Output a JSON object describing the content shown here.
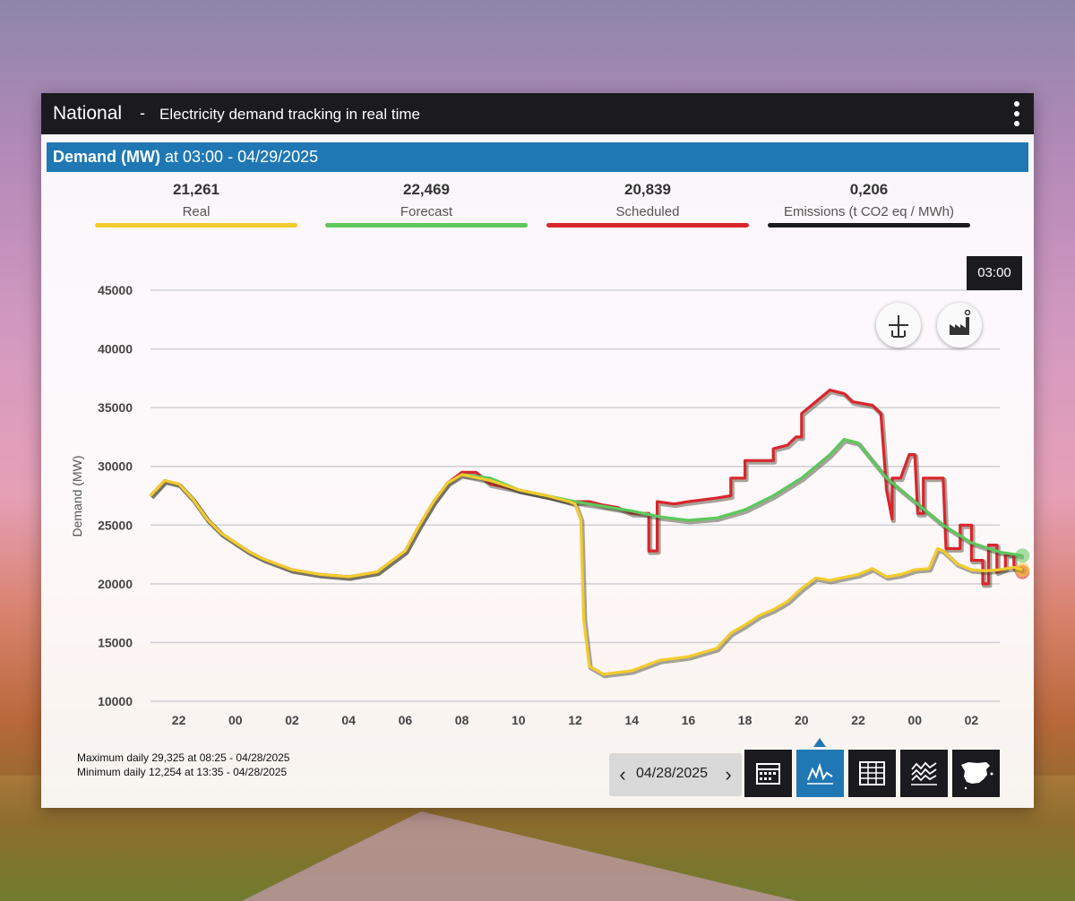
{
  "header": {
    "region": "National",
    "separator": "-",
    "subtitle": "Electricity demand tracking in real time"
  },
  "demand_bar": {
    "label": "Demand (MW)",
    "at_text": "at 03:00 - 04/29/2025"
  },
  "stats": [
    {
      "value": "21,261",
      "label": "Real",
      "color": "#f2cc2e"
    },
    {
      "value": "22,469",
      "label": "Forecast",
      "color": "#5cc85c"
    },
    {
      "value": "20,839",
      "label": "Scheduled",
      "color": "#d9262c"
    },
    {
      "value": "0,206",
      "label": "Emissions (t CO2 eq / MWh)",
      "color": "#1b1b1f"
    }
  ],
  "tooltip": "03:00",
  "icons": {
    "wind": "wind-turbine-icon",
    "factory": "factory-icon",
    "calendar": "calendar-icon",
    "line": "line-chart-icon",
    "table": "table-icon",
    "stacked": "stacked-chart-icon",
    "map": "spain-map-icon"
  },
  "footer": {
    "max_text": "Maximum daily 29,325 at 08:25 - 04/28/2025",
    "min_text": "Minimum daily 12,254 at 13:35 - 04/28/2025",
    "date": "04/28/2025"
  },
  "chart_data": {
    "type": "line",
    "ylabel": "Demand (MW)",
    "ylim": [
      10000,
      45000
    ],
    "yticks": [
      "45000",
      "40000",
      "35000",
      "30000",
      "25000",
      "20000",
      "15000",
      "10000"
    ],
    "xticks": [
      "22",
      "00",
      "02",
      "04",
      "06",
      "08",
      "10",
      "12",
      "14",
      "16",
      "18",
      "20",
      "22",
      "00",
      "02"
    ],
    "x_hours_range": [
      21,
      51
    ],
    "grid": true,
    "series": [
      {
        "name": "Scheduled",
        "color": "#d9262c",
        "points": [
          [
            21,
            27500
          ],
          [
            21.5,
            28800
          ],
          [
            22,
            28500
          ],
          [
            22.5,
            27200
          ],
          [
            23,
            25500
          ],
          [
            23.5,
            24300
          ],
          [
            24,
            23500
          ],
          [
            24.5,
            22700
          ],
          [
            25,
            22100
          ],
          [
            26,
            21200
          ],
          [
            27,
            20800
          ],
          [
            28,
            20600
          ],
          [
            29,
            21000
          ],
          [
            30,
            22800
          ],
          [
            30.5,
            25000
          ],
          [
            31,
            27000
          ],
          [
            31.5,
            28600
          ],
          [
            32,
            29500
          ],
          [
            32.5,
            29500
          ],
          [
            33,
            28500
          ],
          [
            34,
            28000
          ],
          [
            35,
            27500
          ],
          [
            35.8,
            27000
          ],
          [
            36,
            27000
          ],
          [
            36.5,
            27000
          ],
          [
            37,
            26700
          ],
          [
            37.5,
            26500
          ],
          [
            38,
            26000
          ],
          [
            38.6,
            26000
          ],
          [
            38.6,
            22800
          ],
          [
            38.9,
            22800
          ],
          [
            38.9,
            27000
          ],
          [
            39.5,
            26800
          ],
          [
            40,
            27000
          ],
          [
            41,
            27300
          ],
          [
            41.5,
            27500
          ],
          [
            41.5,
            29000
          ],
          [
            42,
            29000
          ],
          [
            42,
            30500
          ],
          [
            43,
            30500
          ],
          [
            43,
            31500
          ],
          [
            43.5,
            31800
          ],
          [
            43.8,
            32500
          ],
          [
            44,
            32500
          ],
          [
            44,
            34500
          ],
          [
            44.5,
            35500
          ],
          [
            45,
            36500
          ],
          [
            45.5,
            36200
          ],
          [
            45.8,
            35500
          ],
          [
            46.5,
            35200
          ],
          [
            46.8,
            34500
          ],
          [
            47,
            28000
          ],
          [
            47.2,
            25500
          ],
          [
            47.2,
            29000
          ],
          [
            47.5,
            29000
          ],
          [
            47.8,
            31000
          ],
          [
            48,
            31000
          ],
          [
            48.1,
            26000
          ],
          [
            48.3,
            26000
          ],
          [
            48.3,
            29000
          ],
          [
            49,
            29000
          ],
          [
            49.1,
            23000
          ],
          [
            49.6,
            23000
          ],
          [
            49.6,
            25000
          ],
          [
            50,
            25000
          ],
          [
            50,
            22000
          ],
          [
            50.4,
            22000
          ],
          [
            50.4,
            20000
          ],
          [
            50.6,
            20000
          ],
          [
            50.6,
            23300
          ],
          [
            50.9,
            23300
          ],
          [
            50.9,
            21000
          ],
          [
            51.2,
            21300
          ],
          [
            51.2,
            22500
          ],
          [
            51.5,
            22500
          ],
          [
            51.5,
            21300
          ],
          [
            51.8,
            21300
          ],
          [
            51.8,
            21000
          ]
        ]
      },
      {
        "name": "Forecast",
        "color": "#5cc85c",
        "points": [
          [
            32,
            29300
          ],
          [
            33,
            29000
          ],
          [
            34,
            28000
          ],
          [
            35,
            27500
          ],
          [
            36,
            27000
          ],
          [
            37,
            26600
          ],
          [
            38,
            26200
          ],
          [
            39,
            25700
          ],
          [
            40,
            25400
          ],
          [
            41,
            25600
          ],
          [
            42,
            26300
          ],
          [
            43,
            27500
          ],
          [
            44,
            29000
          ],
          [
            45,
            31000
          ],
          [
            45.5,
            32300
          ],
          [
            46,
            32000
          ],
          [
            46.5,
            30500
          ],
          [
            47,
            29000
          ],
          [
            48,
            27000
          ],
          [
            49,
            25000
          ],
          [
            50,
            23500
          ],
          [
            51,
            22700
          ],
          [
            51.8,
            22400
          ]
        ]
      },
      {
        "name": "Real",
        "color": "#f2cc2e",
        "points": [
          [
            21,
            27500
          ],
          [
            21.5,
            28800
          ],
          [
            22,
            28500
          ],
          [
            22.5,
            27200
          ],
          [
            23,
            25500
          ],
          [
            23.5,
            24300
          ],
          [
            24,
            23500
          ],
          [
            24.5,
            22700
          ],
          [
            25,
            22100
          ],
          [
            26,
            21200
          ],
          [
            27,
            20800
          ],
          [
            28,
            20600
          ],
          [
            29,
            21000
          ],
          [
            30,
            22800
          ],
          [
            30.5,
            25000
          ],
          [
            31,
            27000
          ],
          [
            31.5,
            28600
          ],
          [
            32,
            29300
          ],
          [
            33,
            28800
          ],
          [
            34,
            28000
          ],
          [
            35,
            27500
          ],
          [
            35.8,
            27000
          ],
          [
            36,
            26800
          ],
          [
            36.2,
            25500
          ],
          [
            36.3,
            17000
          ],
          [
            36.5,
            13000
          ],
          [
            37,
            12300
          ],
          [
            38,
            12600
          ],
          [
            39,
            13500
          ],
          [
            40,
            13800
          ],
          [
            41,
            14500
          ],
          [
            41.5,
            15800
          ],
          [
            42,
            16500
          ],
          [
            42.5,
            17300
          ],
          [
            43,
            17800
          ],
          [
            43.5,
            18500
          ],
          [
            44,
            19600
          ],
          [
            44.5,
            20500
          ],
          [
            45,
            20300
          ],
          [
            46,
            20800
          ],
          [
            46.5,
            21300
          ],
          [
            47,
            20600
          ],
          [
            47.5,
            20800
          ],
          [
            48,
            21200
          ],
          [
            48.5,
            21300
          ],
          [
            48.8,
            23000
          ],
          [
            49,
            22800
          ],
          [
            49.5,
            21700
          ],
          [
            50,
            21200
          ],
          [
            50.5,
            21100
          ],
          [
            51,
            21200
          ],
          [
            51.5,
            21400
          ],
          [
            51.8,
            21200
          ]
        ]
      }
    ]
  }
}
